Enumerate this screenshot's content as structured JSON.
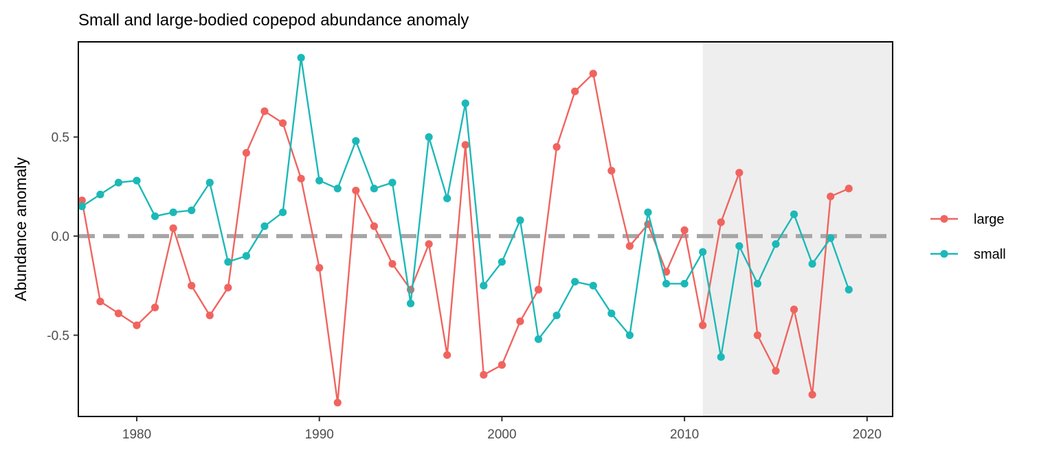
{
  "chart_data": {
    "type": "line",
    "title": "Small and large-bodied copepod abundance anomaly",
    "xlabel": "",
    "ylabel": "Abundance anomaly",
    "xlim": [
      1976.8,
      2021.4
    ],
    "ylim": [
      -0.91,
      0.98
    ],
    "x_ticks": [
      1980,
      1990,
      2000,
      2010,
      2020
    ],
    "x_tick_labels": [
      "1980",
      "1990",
      "2000",
      "2010",
      "2020"
    ],
    "y_ticks": [
      -0.5,
      0.0,
      0.5
    ],
    "y_tick_labels": [
      "-0.5",
      "0.0",
      "0.5"
    ],
    "reference_line": {
      "y": 0,
      "style": "dashed",
      "color": "#a6a6a6"
    },
    "shaded_region": {
      "x_start": 2011.0,
      "x_end": 2021.4,
      "color": "#eeeeee"
    },
    "grid": false,
    "legend_position": "right",
    "x": [
      1977,
      1978,
      1979,
      1980,
      1981,
      1982,
      1983,
      1984,
      1985,
      1986,
      1987,
      1988,
      1989,
      1990,
      1991,
      1992,
      1993,
      1994,
      1995,
      1996,
      1997,
      1998,
      1999,
      2000,
      2001,
      2002,
      2003,
      2004,
      2005,
      2006,
      2007,
      2008,
      2009,
      2010,
      2011,
      2012,
      2013,
      2014,
      2015,
      2016,
      2017,
      2018,
      2019
    ],
    "series": [
      {
        "name": "large",
        "color": "#f0645f",
        "values": [
          0.18,
          -0.33,
          -0.39,
          -0.45,
          -0.36,
          0.04,
          -0.25,
          -0.4,
          -0.26,
          0.42,
          0.63,
          0.57,
          0.29,
          -0.16,
          -0.84,
          0.23,
          0.05,
          -0.14,
          -0.27,
          -0.04,
          -0.6,
          0.46,
          -0.7,
          -0.65,
          -0.43,
          -0.27,
          0.45,
          0.73,
          0.82,
          0.33,
          -0.05,
          0.06,
          -0.18,
          0.03,
          -0.45,
          0.07,
          0.32,
          -0.5,
          -0.68,
          -0.37,
          -0.8,
          0.2,
          0.24
        ]
      },
      {
        "name": "small",
        "color": "#1cb8b8",
        "values": [
          0.15,
          0.21,
          0.27,
          0.28,
          0.1,
          0.12,
          0.13,
          0.27,
          -0.13,
          -0.1,
          0.05,
          0.12,
          0.9,
          0.28,
          0.24,
          0.48,
          0.24,
          0.27,
          -0.34,
          0.5,
          0.19,
          0.67,
          -0.25,
          -0.13,
          0.08,
          -0.52,
          -0.4,
          -0.23,
          -0.25,
          -0.39,
          -0.5,
          0.12,
          -0.24,
          -0.24,
          -0.08,
          -0.61,
          -0.05,
          -0.24,
          -0.04,
          0.11,
          -0.14,
          -0.01,
          -0.27
        ]
      }
    ]
  }
}
